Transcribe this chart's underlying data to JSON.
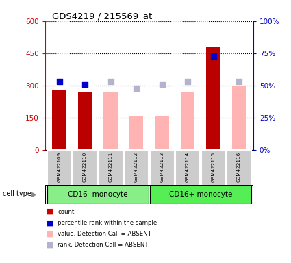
{
  "title": "GDS4219 / 215569_at",
  "samples": [
    "GSM422109",
    "GSM422110",
    "GSM422111",
    "GSM422112",
    "GSM422113",
    "GSM422114",
    "GSM422115",
    "GSM422116"
  ],
  "bar_values": [
    280,
    270,
    null,
    null,
    null,
    null,
    480,
    null
  ],
  "bar_values_absent": [
    null,
    null,
    270,
    155,
    160,
    270,
    null,
    295
  ],
  "percentile_present": [
    320,
    305,
    null,
    null,
    null,
    null,
    435,
    null
  ],
  "percentile_absent": [
    null,
    null,
    318,
    287,
    305,
    318,
    null,
    320
  ],
  "ylim_left": [
    0,
    600
  ],
  "yticks_left": [
    0,
    150,
    300,
    450,
    600
  ],
  "ytick_labels_left": [
    "0",
    "150",
    "300",
    "450",
    "600"
  ],
  "ytick_labels_right": [
    "0%",
    "25%",
    "50%",
    "75%",
    "100%"
  ],
  "yticks_right": [
    0,
    1.5,
    3.0,
    4.5,
    6.0
  ],
  "ylim_right": [
    0,
    6
  ],
  "group1_label": "CD16- monocyte",
  "group2_label": "CD16+ monocyte",
  "group1_indices": [
    0,
    1,
    2,
    3
  ],
  "group2_indices": [
    4,
    5,
    6,
    7
  ],
  "cell_type_label": "cell type",
  "legend_items": [
    {
      "label": "count",
      "color": "#cc0000"
    },
    {
      "label": "percentile rank within the sample",
      "color": "#0000cc"
    },
    {
      "label": "value, Detection Call = ABSENT",
      "color": "#ffb3b3"
    },
    {
      "label": "rank, Detection Call = ABSENT",
      "color": "#b3b3cc"
    }
  ],
  "bar_width": 0.55,
  "dot_size": 40,
  "left_axis_color": "#cc0000",
  "right_axis_color": "#0000cc",
  "absent_bar_color": "#ffb3b3",
  "present_bar_color": "#bb0000",
  "absent_dot_color": "#b3b3cc",
  "present_dot_color": "#0000cc"
}
